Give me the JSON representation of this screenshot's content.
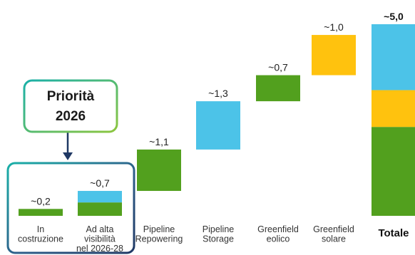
{
  "chart_data": {
    "type": "bar",
    "subtype": "waterfall",
    "title": "",
    "xlabel": "",
    "ylabel": "",
    "ylim": [
      0,
      5.0
    ],
    "grid": false,
    "legend": "none",
    "categories": [
      [
        "In",
        "costruzione"
      ],
      [
        "Ad alta",
        "visibilità",
        "nel 2026-28"
      ],
      [
        "Pipeline",
        "Repowering"
      ],
      [
        "Pipeline",
        "Storage"
      ],
      [
        "Greenfield",
        "eolico"
      ],
      [
        "Greenfield",
        "solare"
      ],
      [
        "Totale"
      ]
    ],
    "bars": [
      {
        "value_label": "~0,2",
        "start": 0.0,
        "segments": [
          {
            "value": 0.18,
            "color": "#52a01e"
          }
        ]
      },
      {
        "value_label": "~0,7",
        "start": 0.0,
        "segments": [
          {
            "value": 0.35,
            "color": "#52a01e"
          },
          {
            "value": 0.3,
            "color": "#4cc3e8"
          }
        ]
      },
      {
        "value_label": "~1,1",
        "start": 0.65,
        "segments": [
          {
            "value": 1.08,
            "color": "#52a01e"
          }
        ]
      },
      {
        "value_label": "~1,3",
        "start": 1.73,
        "segments": [
          {
            "value": 1.26,
            "color": "#4cc3e8"
          }
        ]
      },
      {
        "value_label": "~0,7",
        "start": 2.99,
        "segments": [
          {
            "value": 0.68,
            "color": "#52a01e"
          }
        ]
      },
      {
        "value_label": "~1,0",
        "start": 3.67,
        "segments": [
          {
            "value": 1.05,
            "color": "#ffc20e"
          }
        ]
      },
      {
        "value_label": "~5,0",
        "start": 0.0,
        "total": true,
        "segments": [
          {
            "value": 2.32,
            "color": "#52a01e"
          },
          {
            "value": 0.96,
            "color": "#ffc20e"
          },
          {
            "value": 1.72,
            "color": "#4cc3e8"
          }
        ]
      }
    ],
    "annotation": {
      "lines": [
        "Priorità",
        "2026"
      ],
      "targets": "first two bars"
    },
    "colors": {
      "green": "#52a01e",
      "blue": "#4cc3e8",
      "yellow": "#ffc20e",
      "callout_border_from": "#1ab0a8",
      "callout_border_to": "#8dc63f",
      "navy": "#1f3864"
    }
  }
}
